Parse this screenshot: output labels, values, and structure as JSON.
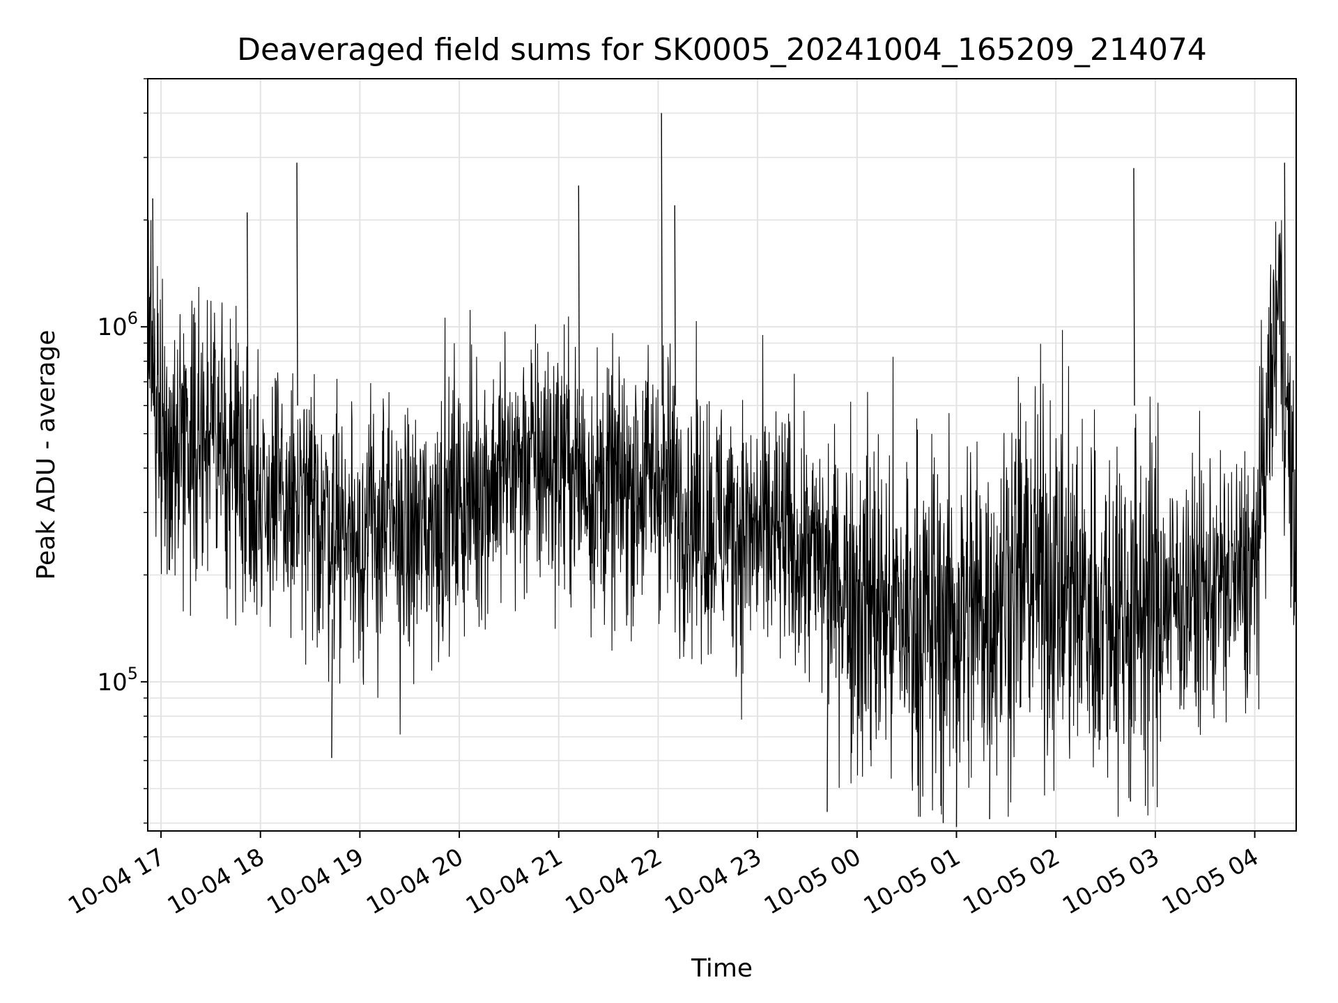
{
  "chart_data": {
    "type": "line",
    "title": "Deaveraged field sums for SK0005_20241004_165209_214074",
    "xlabel": "Time",
    "ylabel": "Peak ADU - average",
    "yscale": "log",
    "ylim": [
      38000,
      5000000
    ],
    "xlim": [
      "2024-10-04 16:52",
      "2024-10-05 04:25"
    ],
    "grid": true,
    "x_ticks": [
      {
        "t": "2024-10-04 17:00",
        "label": "10-04 17"
      },
      {
        "t": "2024-10-04 18:00",
        "label": "10-04 18"
      },
      {
        "t": "2024-10-04 19:00",
        "label": "10-04 19"
      },
      {
        "t": "2024-10-04 20:00",
        "label": "10-04 20"
      },
      {
        "t": "2024-10-04 21:00",
        "label": "10-04 21"
      },
      {
        "t": "2024-10-04 22:00",
        "label": "10-04 22"
      },
      {
        "t": "2024-10-04 23:00",
        "label": "10-04 23"
      },
      {
        "t": "2024-10-05 00:00",
        "label": "10-05 00"
      },
      {
        "t": "2024-10-05 01:00",
        "label": "10-05 01"
      },
      {
        "t": "2024-10-05 02:00",
        "label": "10-05 02"
      },
      {
        "t": "2024-10-05 03:00",
        "label": "10-05 03"
      },
      {
        "t": "2024-10-05 04:00",
        "label": "10-05 04"
      }
    ],
    "y_ticks": [
      {
        "value": 100000,
        "base": "10",
        "exp": "5"
      },
      {
        "value": 1000000,
        "base": "10",
        "exp": "6"
      }
    ],
    "series": [
      {
        "color": "#000000",
        "points": [
          [
            "2024-10-04 16:52",
            950000
          ],
          [
            "2024-10-04 17:05",
            420000
          ],
          [
            "2024-10-04 17:15",
            520000
          ],
          [
            "2024-10-04 17:30",
            480000
          ],
          [
            "2024-10-04 17:45",
            430000
          ],
          [
            "2024-10-04 18:00",
            340000
          ],
          [
            "2024-10-04 18:15",
            310000
          ],
          [
            "2024-10-04 18:30",
            300000
          ],
          [
            "2024-10-04 18:45",
            280000
          ],
          [
            "2024-10-04 19:00",
            260000
          ],
          [
            "2024-10-04 19:15",
            270000
          ],
          [
            "2024-10-04 19:30",
            250000
          ],
          [
            "2024-10-04 19:45",
            290000
          ],
          [
            "2024-10-04 20:00",
            320000
          ],
          [
            "2024-10-04 20:15",
            360000
          ],
          [
            "2024-10-04 20:30",
            400000
          ],
          [
            "2024-10-04 20:45",
            410000
          ],
          [
            "2024-10-04 21:00",
            420000
          ],
          [
            "2024-10-04 21:15",
            380000
          ],
          [
            "2024-10-04 21:30",
            340000
          ],
          [
            "2024-10-04 21:45",
            360000
          ],
          [
            "2024-10-04 22:00",
            380000
          ],
          [
            "2024-10-04 22:15",
            320000
          ],
          [
            "2024-10-04 22:30",
            280000
          ],
          [
            "2024-10-04 22:45",
            270000
          ],
          [
            "2024-10-04 23:00",
            260000
          ],
          [
            "2024-10-04 23:15",
            250000
          ],
          [
            "2024-10-04 23:30",
            230000
          ],
          [
            "2024-10-04 23:45",
            200000
          ],
          [
            "2024-10-05 00:00",
            180000
          ],
          [
            "2024-10-05 00:15",
            160000
          ],
          [
            "2024-10-05 00:30",
            150000
          ],
          [
            "2024-10-05 00:45",
            145000
          ],
          [
            "2024-10-05 01:00",
            150000
          ],
          [
            "2024-10-05 01:15",
            160000
          ],
          [
            "2024-10-05 01:30",
            190000
          ],
          [
            "2024-10-05 01:45",
            210000
          ],
          [
            "2024-10-05 02:00",
            190000
          ],
          [
            "2024-10-05 02:15",
            170000
          ],
          [
            "2024-10-05 02:30",
            160000
          ],
          [
            "2024-10-05 02:45",
            165000
          ],
          [
            "2024-10-05 03:00",
            170000
          ],
          [
            "2024-10-05 03:15",
            175000
          ],
          [
            "2024-10-05 03:30",
            180000
          ],
          [
            "2024-10-05 03:45",
            190000
          ],
          [
            "2024-10-05 04:00",
            200000
          ],
          [
            "2024-10-05 04:10",
            700000
          ],
          [
            "2024-10-05 04:15",
            1300000
          ],
          [
            "2024-10-05 04:20",
            500000
          ],
          [
            "2024-10-05 04:25",
            200000
          ]
        ]
      }
    ],
    "spikes": [
      [
        "2024-10-04 16:55",
        2300000
      ],
      [
        "2024-10-04 17:52",
        2100000
      ],
      [
        "2024-10-04 18:22",
        2900000
      ],
      [
        "2024-10-04 21:12",
        2500000
      ],
      [
        "2024-10-04 22:02",
        4000000
      ],
      [
        "2024-10-04 22:10",
        2200000
      ],
      [
        "2024-10-05 02:47",
        2800000
      ],
      [
        "2024-10-05 04:18",
        2900000
      ]
    ],
    "dips": [
      [
        "2024-10-04 18:43",
        61000
      ],
      [
        "2024-10-04 23:42",
        43000
      ],
      [
        "2024-10-05 00:52",
        40000
      ],
      [
        "2024-10-05 01:00",
        39000
      ],
      [
        "2024-10-05 01:20",
        41000
      ],
      [
        "2024-10-05 02:45",
        46000
      ]
    ]
  }
}
